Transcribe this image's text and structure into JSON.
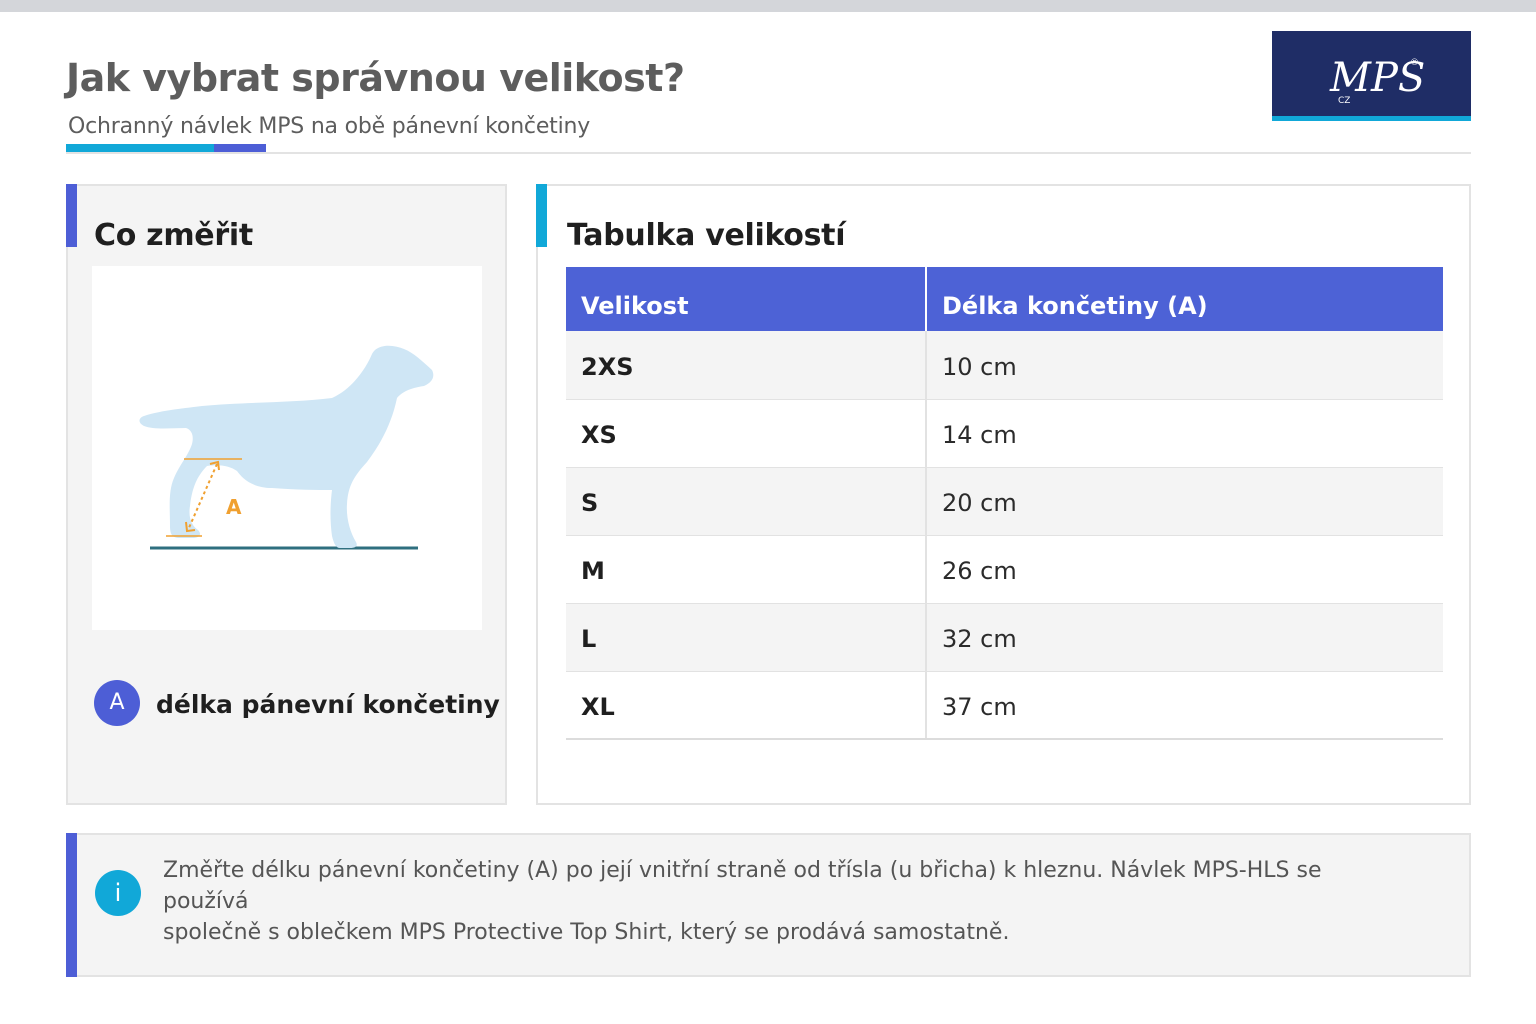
{
  "header": {
    "title": "Jak vybrat správnou velikost?",
    "subtitle": "Ochranný návlek MPS na obě pánevní končetiny"
  },
  "logo": {
    "text": "MPS",
    "small_text": "CZ",
    "registered": "®"
  },
  "measure_card": {
    "title": "Co změřit",
    "marker_label": "A",
    "legend": {
      "badge": "A",
      "label": "délka pánevní končetiny"
    }
  },
  "size_card": {
    "title": "Tabulka velikostí",
    "columns": [
      "Velikost",
      "Délka končetiny (A)"
    ],
    "rows": [
      {
        "size": "2XS",
        "length": "10 cm"
      },
      {
        "size": "XS",
        "length": "14 cm"
      },
      {
        "size": "S",
        "length": "20 cm"
      },
      {
        "size": "M",
        "length": "26 cm"
      },
      {
        "size": "L",
        "length": "32 cm"
      },
      {
        "size": "XL",
        "length": "37 cm"
      }
    ]
  },
  "info": {
    "icon": "i",
    "text_line1": "Změřte délku pánevní končetiny (A) po její vnitřní straně od třísla (u břicha) k hleznu. Návlek MPS-HLS se používá",
    "text_line2": "společně s oblečkem MPS Protective Top Shirt, který se prodává samostatně."
  },
  "colors": {
    "brand_navy": "#1f2d66",
    "accent_blue": "#4d5ed6",
    "accent_cyan": "#11a8d8",
    "table_header": "#4d62d6",
    "dog_fill": "#cfe6f5",
    "measure_orange": "#f0a030",
    "ground_line": "#2f6f7f"
  }
}
